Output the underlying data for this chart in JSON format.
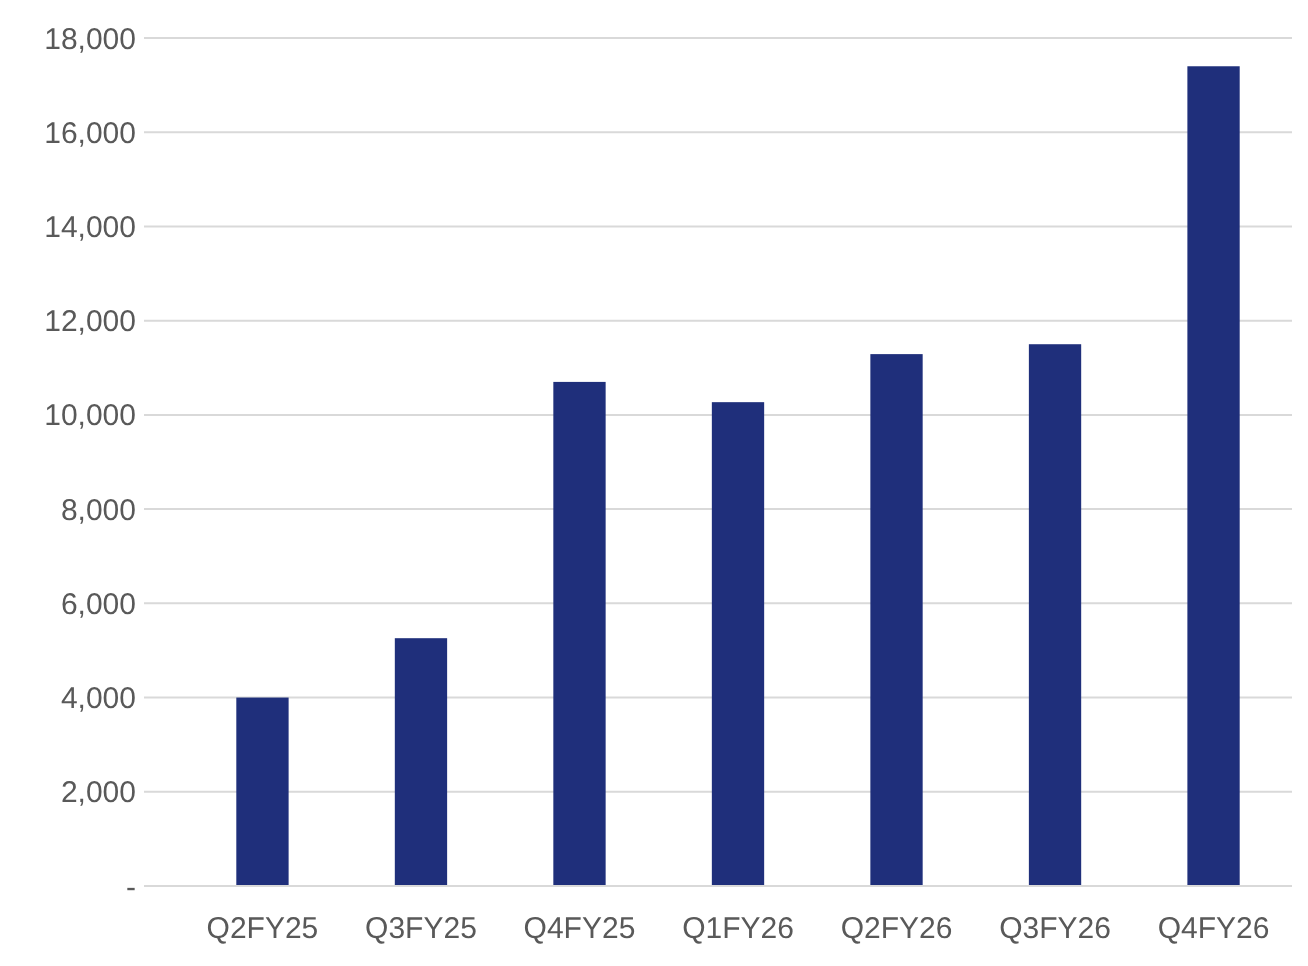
{
  "chart_data": {
    "type": "bar",
    "categories": [
      "Q2FY25",
      "Q3FY25",
      "Q4FY25",
      "Q1FY26",
      "Q2FY26",
      "Q3FY26",
      "Q4FY26"
    ],
    "values": [
      4000,
      5260,
      10700,
      10270,
      11290,
      11500,
      17400
    ],
    "color": "#1f2f7b",
    "ylim": [
      0,
      18000
    ],
    "yticks": [
      {
        "value": 0,
        "label": "-"
      },
      {
        "value": 2000,
        "label": "2,000"
      },
      {
        "value": 4000,
        "label": "4,000"
      },
      {
        "value": 6000,
        "label": "6,000"
      },
      {
        "value": 8000,
        "label": "8,000"
      },
      {
        "value": 10000,
        "label": "10,000"
      },
      {
        "value": 12000,
        "label": "12,000"
      },
      {
        "value": 14000,
        "label": "14,000"
      },
      {
        "value": 16000,
        "label": "16,000"
      },
      {
        "value": 18000,
        "label": "18,000"
      }
    ],
    "grid": "y"
  }
}
